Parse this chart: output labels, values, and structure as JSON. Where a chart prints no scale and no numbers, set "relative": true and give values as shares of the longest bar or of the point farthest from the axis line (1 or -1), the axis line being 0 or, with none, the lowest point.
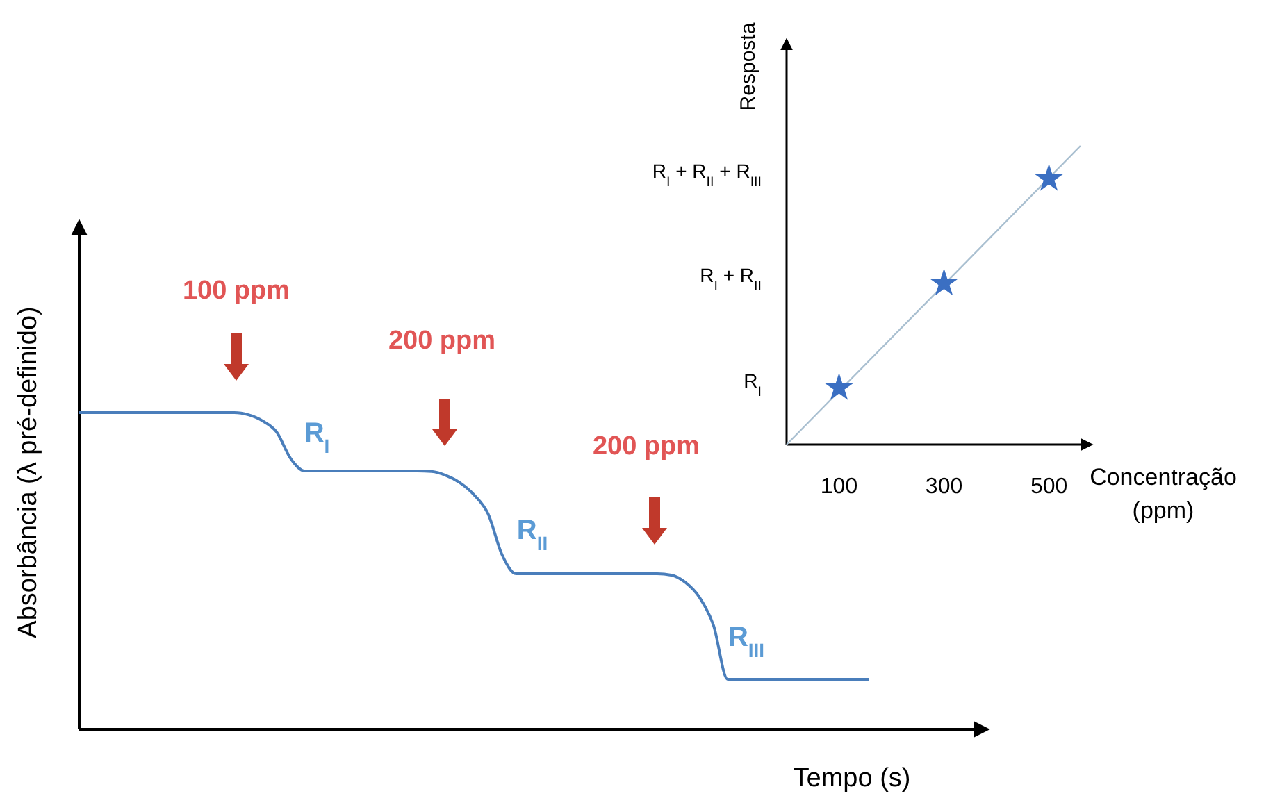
{
  "chart_data": [
    {
      "type": "line",
      "relative": true,
      "xlabel": "Tempo (s)",
      "ylabel": "Absorbância (λ pré-definido)",
      "categories": [
        null,
        null,
        null,
        null,
        null,
        null,
        null,
        null,
        null,
        null,
        null,
        null,
        null,
        null,
        null,
        null,
        null,
        null,
        null,
        null,
        null,
        null,
        null,
        null,
        null,
        null,
        null,
        null,
        null,
        null,
        null,
        null,
        null,
        null,
        null,
        null,
        null,
        null,
        null,
        null,
        null,
        null,
        null,
        null,
        null,
        null,
        null,
        null,
        null,
        null,
        null,
        null,
        null,
        null,
        null,
        null,
        null
      ],
      "series": [
        {
          "color": "#4a7ebb",
          "values": [
            1,
            1,
            1,
            1,
            1,
            1,
            1,
            1,
            1,
            1,
            1,
            1,
            0.993,
            0.974,
            0.939,
            0.855,
            0.816,
            0.816,
            0.816,
            0.816,
            0.816,
            0.816,
            0.816,
            0.816,
            0.816,
            0.814,
            0.802,
            0.779,
            0.741,
            0.681,
            0.551,
            0.491,
            0.491,
            0.491,
            0.491,
            0.491,
            0.491,
            0.491,
            0.491,
            0.491,
            0.491,
            0.491,
            0.487,
            0.464,
            0.417,
            0.328,
            0.158,
            0.158,
            0.158,
            0.158,
            0.158,
            0.158,
            0.158,
            0.158,
            0.158,
            0.158,
            0.158
          ]
        }
      ],
      "annotations": [
        "100 ppm",
        "200 ppm",
        "200 ppm",
        "R$_{I}$",
        "R$_{II}$",
        "R$_{III}$"
      ]
    },
    {
      "type": "scatter",
      "relative": true,
      "xlabel": "Concentração (ppm)",
      "ylabel": "Resposta",
      "xlim": [
        0,
        580
      ],
      "xticks": [
        100,
        300,
        500
      ],
      "annotations": [
        "R$_{I}$",
        "R$_{I}$ + R$_{II}$",
        "R$_{I}$ + R$_{II}$ + R$_{III}$"
      ],
      "series": [
        {
          "type": "line",
          "color": "#a9bfd0",
          "x": [
            0,
            560
          ],
          "values": [
            0,
            1
          ]
        },
        {
          "color": "#3b6fc2",
          "marker": "star",
          "x": [
            100,
            300,
            500
          ],
          "values": [
            0.19,
            0.54,
            0.89
          ]
        }
      ]
    }
  ]
}
